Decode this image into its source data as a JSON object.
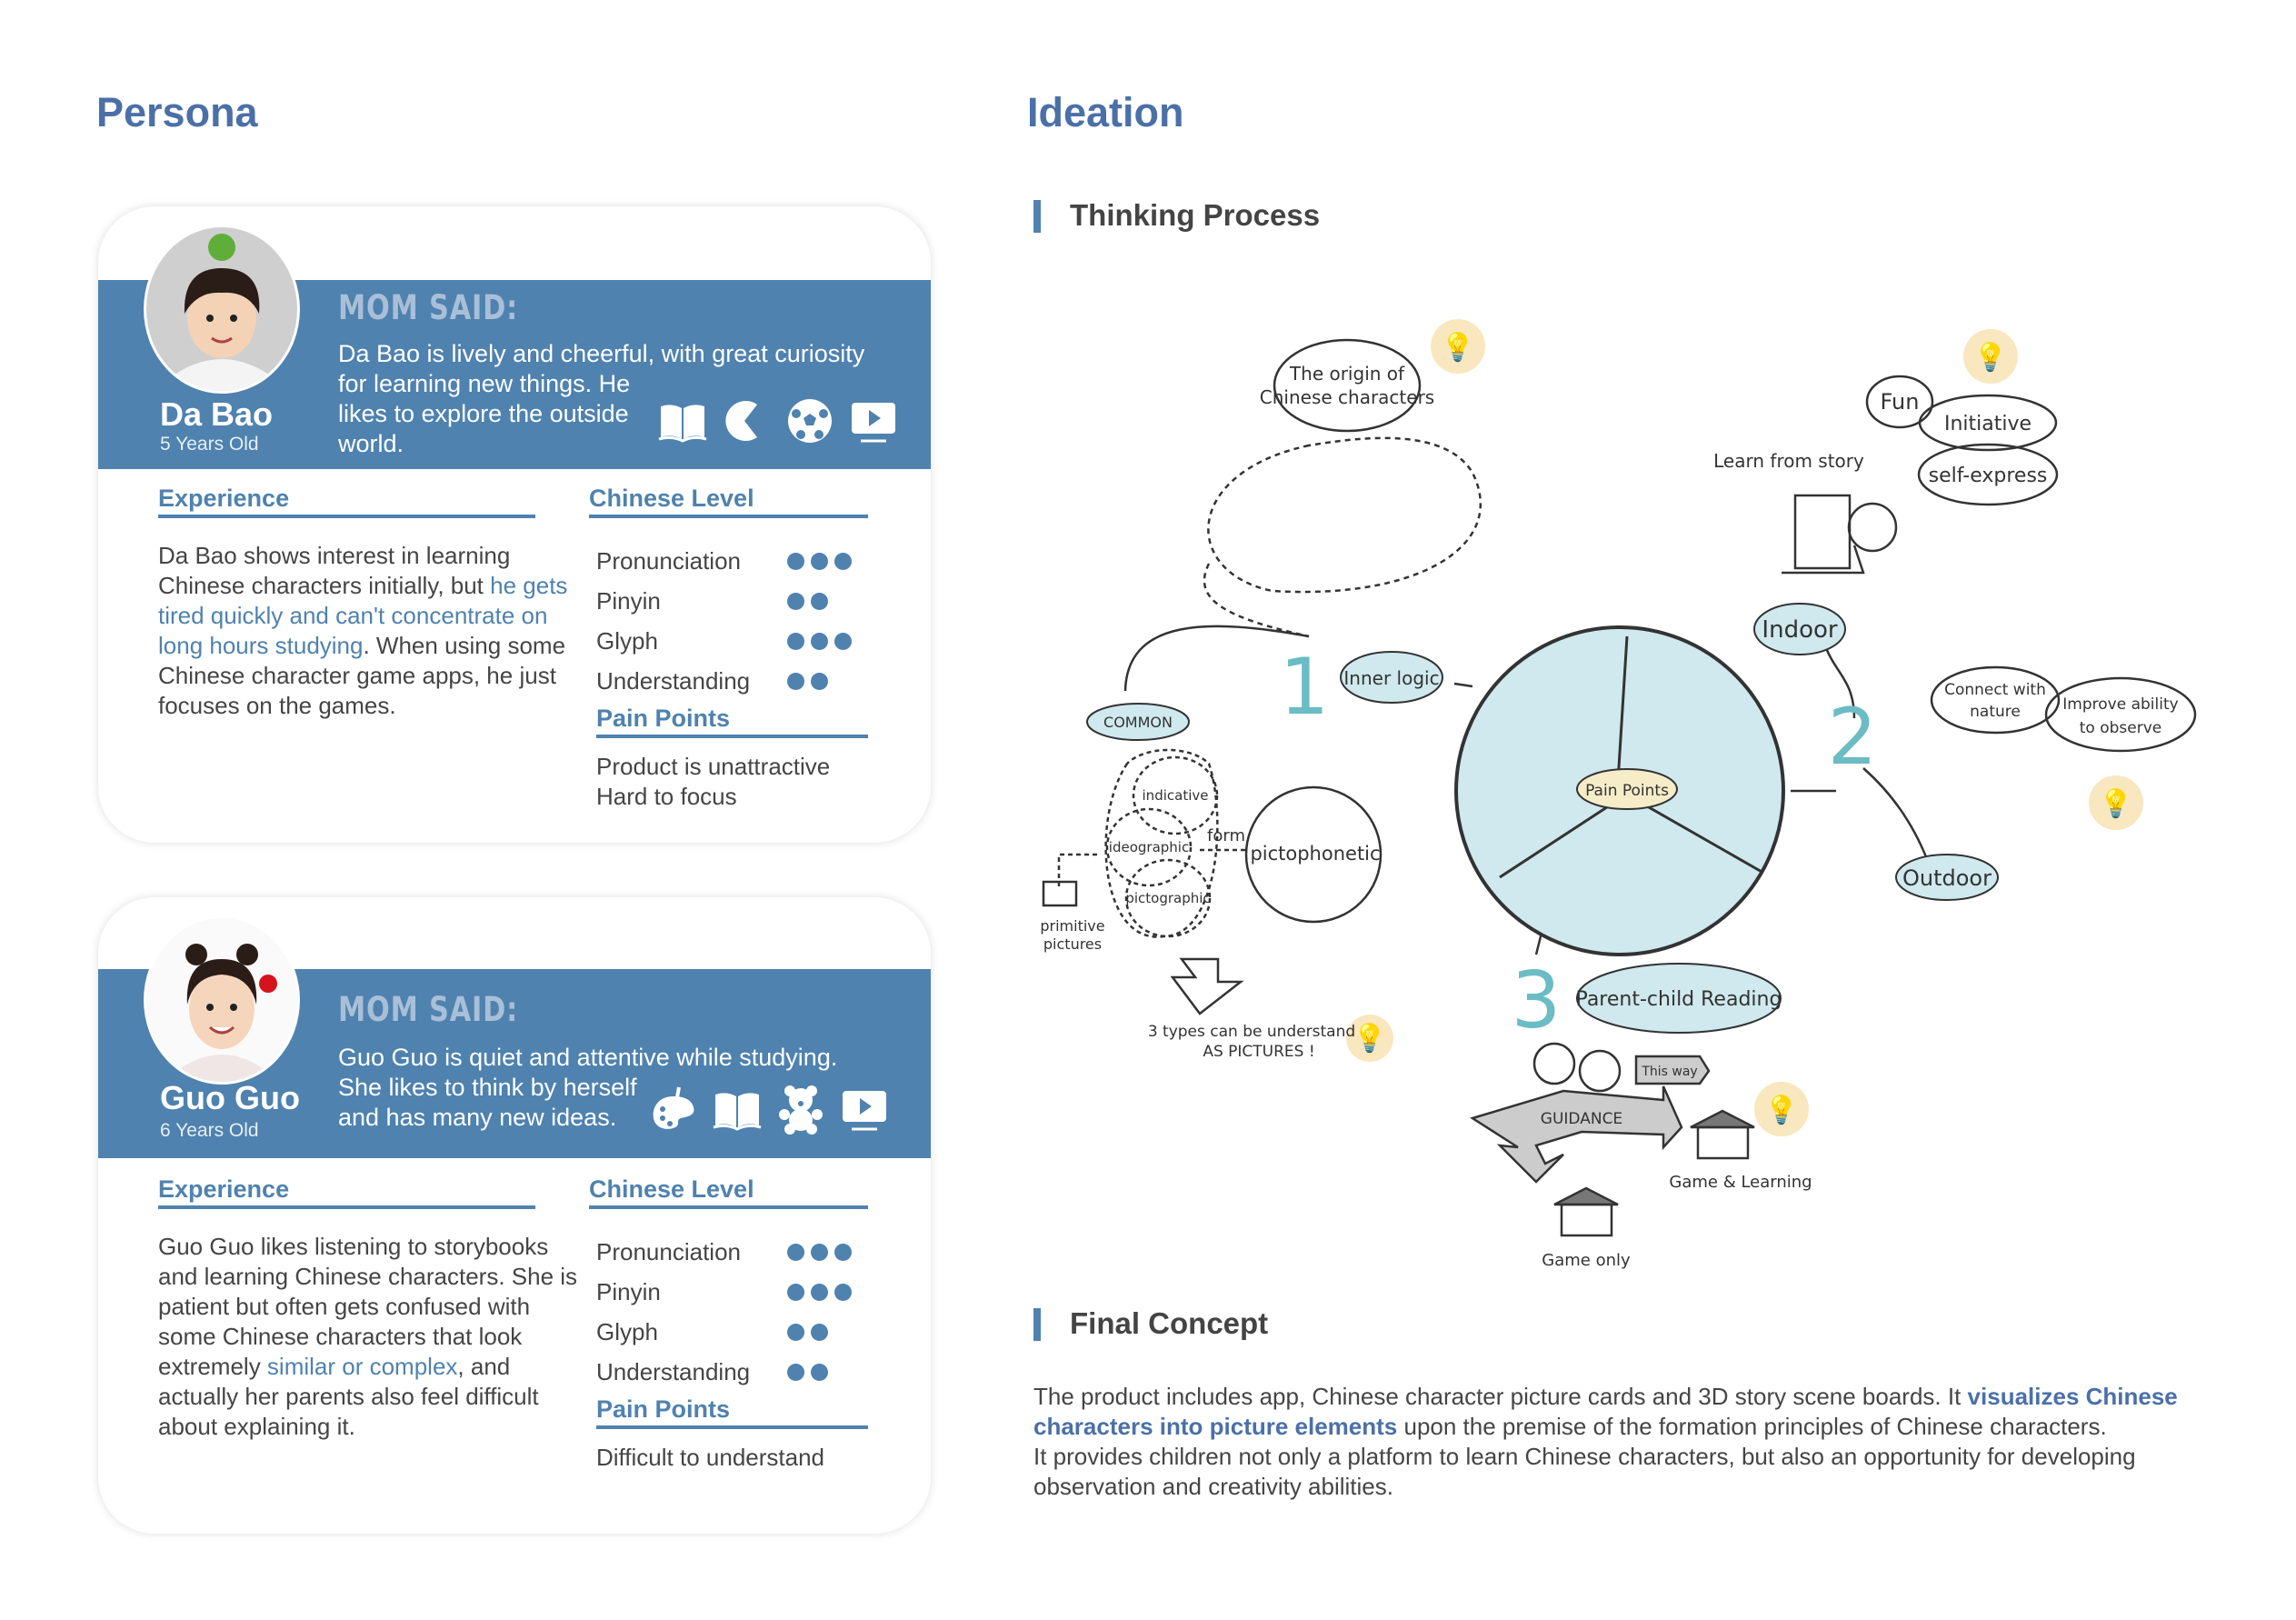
{
  "persona": {
    "title": "Persona",
    "cards": [
      {
        "name": "Da Bao",
        "age": "5 Years Old",
        "mom_said": "MOM  SAID:",
        "description": [
          "Da Bao is lively and cheerful, with great curiosity",
          "for learning new things. He",
          "likes to explore the outside",
          "world."
        ],
        "interests": [
          "book-icon",
          "pacman-icon",
          "soccer-ball-icon",
          "video-play-icon"
        ],
        "experience_heading": "Experience",
        "experience": [
          {
            "text": "Da Bao shows interest in learning Chinese characters initially, but ",
            "highlight": false
          },
          {
            "text": "he gets tired quickly and can't concentrate on long hours studying",
            "highlight": true
          },
          {
            "text": ". When using some Chinese character game apps, he just focuses on the games.",
            "highlight": false
          }
        ],
        "level_heading": "Chinese Level",
        "levels": [
          {
            "label": "Pronunciation",
            "value": 3
          },
          {
            "label": "Pinyin",
            "value": 2
          },
          {
            "label": "Glyph",
            "value": 3
          },
          {
            "label": "Understanding",
            "value": 2
          }
        ],
        "pain_heading": "Pain Points",
        "pain_points": [
          "Product is unattractive",
          "Hard to focus"
        ]
      },
      {
        "name": "Guo Guo",
        "age": "6 Years Old",
        "mom_said": "MOM  SAID:",
        "description": [
          "Guo Guo is quiet and attentive while studying.",
          "She likes to think by herself",
          "and has many new ideas."
        ],
        "interests": [
          "palette-icon",
          "book-icon",
          "teddy-bear-icon",
          "video-play-icon"
        ],
        "experience_heading": "Experience",
        "experience": [
          {
            "text": "Guo Guo likes listening to storybooks and learning Chinese characters. She is patient but often gets confused with some Chinese characters that look extremely ",
            "highlight": false
          },
          {
            "text": "similar or complex",
            "highlight": true
          },
          {
            "text": ", and actually her parents also feel difficult about explaining it.",
            "highlight": false
          }
        ],
        "level_heading": "Chinese Level",
        "levels": [
          {
            "label": "Pronunciation",
            "value": 3
          },
          {
            "label": "Pinyin",
            "value": 3
          },
          {
            "label": "Glyph",
            "value": 2
          },
          {
            "label": "Understanding",
            "value": 2
          }
        ],
        "pain_heading": "Pain Points",
        "pain_points": [
          "Difficult to understand"
        ]
      }
    ]
  },
  "ideation": {
    "title": "Ideation",
    "thinking_title": "Thinking Process",
    "sketch": {
      "origin": [
        "The origin of",
        "Chinese characters"
      ],
      "fun": "Fun",
      "initiative": "Initiative",
      "self_express": "self-express",
      "learn_story": "Learn from story",
      "indoor": "Indoor",
      "connect": [
        "Connect with",
        "nature"
      ],
      "improve": [
        "Improve ability",
        "to observe"
      ],
      "outdoor": "Outdoor",
      "num1": "1",
      "num2": "2",
      "num3": "3",
      "inner_logic": "Inner logic",
      "common": "COMMON",
      "indicative": "indicative",
      "ideographic": "ideographic",
      "pictographic": "pictographic",
      "form": "form",
      "pictophonetic": "pictophonetic",
      "primitive": [
        "primitive",
        "pictures"
      ],
      "three_types": [
        "3 types can be understand",
        "AS PICTURES !"
      ],
      "pain_points": "Pain Points",
      "parent_child": "Parent-child Reading",
      "this_way": "This way",
      "guidance": "GUIDANCE",
      "game_learning": "Game & Learning",
      "game_only": "Game only",
      "accent": "#6bbcc4"
    },
    "final_title": "Final Concept",
    "final_p1": [
      {
        "text": "The product includes app, Chinese character picture cards and 3D story scene boards. It ",
        "highlight": false
      },
      {
        "text": "visualizes Chinese characters into picture elements",
        "highlight": true
      },
      {
        "text": " upon the premise of the formation principles of Chinese characters.",
        "highlight": false
      }
    ],
    "final_p2": "It provides children not only a platform to learn Chinese characters, but also an opportunity for developing observation and creativity abilities."
  },
  "colors": {
    "brand": "#4f82ae",
    "title": "#4b70a8",
    "mom_said": "#a9bfd8",
    "sketch_fill": "#cfe9ee"
  }
}
